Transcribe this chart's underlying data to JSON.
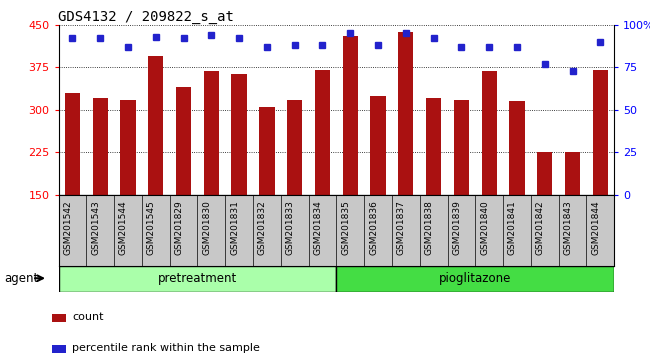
{
  "title": "GDS4132 / 209822_s_at",
  "categories": [
    "GSM201542",
    "GSM201543",
    "GSM201544",
    "GSM201545",
    "GSM201829",
    "GSM201830",
    "GSM201831",
    "GSM201832",
    "GSM201833",
    "GSM201834",
    "GSM201835",
    "GSM201836",
    "GSM201837",
    "GSM201838",
    "GSM201839",
    "GSM201840",
    "GSM201841",
    "GSM201842",
    "GSM201843",
    "GSM201844"
  ],
  "bar_values": [
    330,
    320,
    317,
    395,
    340,
    368,
    363,
    305,
    318,
    370,
    430,
    325,
    437,
    320,
    318,
    368,
    315,
    225,
    225,
    370
  ],
  "percentile_values": [
    92,
    92,
    87,
    93,
    92,
    94,
    92,
    87,
    88,
    88,
    95,
    88,
    95,
    92,
    87,
    87,
    87,
    77,
    73,
    90
  ],
  "bar_color": "#aa1111",
  "dot_color": "#2222cc",
  "ylim_left": [
    150,
    450
  ],
  "ylim_right": [
    0,
    100
  ],
  "yticks_left": [
    150,
    225,
    300,
    375,
    450
  ],
  "yticks_right": [
    0,
    25,
    50,
    75,
    100
  ],
  "group1_label": "pretreatment",
  "group2_label": "pioglitazone",
  "group1_count": 10,
  "group2_count": 10,
  "agent_label": "agent",
  "legend_bar_label": "count",
  "legend_dot_label": "percentile rank within the sample",
  "bg_plot": "#ffffff",
  "bg_xtick": "#c8c8c8",
  "group_color1": "#aaffaa",
  "group_color2": "#44dd44",
  "title_fontsize": 10,
  "axis_fontsize": 7.5,
  "bar_width": 0.55
}
